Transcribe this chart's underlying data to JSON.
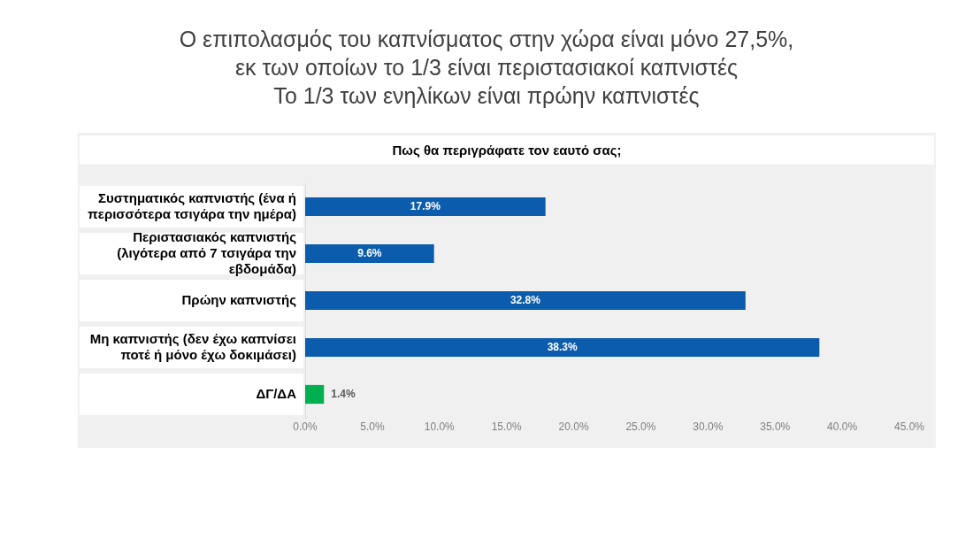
{
  "chart_data": {
    "type": "bar",
    "orientation": "horizontal",
    "title": "Ο επιπολασμός του καπνίσματος στην χώρα είναι μόνο 27,5%,\nεκ των οποίων το 1/3 είναι περιστασιακοί καπνιστές\nΤο 1/3 των ενηλίκων είναι πρώην καπνιστές",
    "subtitle": "Πως θα περιγράφατε τον εαυτό σας;",
    "categories": [
      "Συστηματικός καπνιστής (ένα ή περισσότερα τσιγάρα την ημέρα)",
      "Περιστασιακός καπνιστής (λιγότερα από 7 τσιγάρα την εβδομάδα)",
      "Πρώην καπνιστής",
      "Μη καπνιστής (δεν έχω καπνίσει ποτέ ή μόνο έχω δοκιμάσει)",
      "ΔΓ/ΔΑ"
    ],
    "values": [
      17.9,
      9.6,
      32.8,
      38.3,
      1.4
    ],
    "colors": [
      "#0b5cad",
      "#0b5cad",
      "#0b5cad",
      "#0b5cad",
      "#00b050"
    ],
    "value_labels": [
      "17.9%",
      "9.6%",
      "32.8%",
      "38.3%",
      "1.4%"
    ],
    "xlim": [
      0,
      45
    ],
    "xticks": [
      {
        "value": 0,
        "label": "0.0%"
      },
      {
        "value": 5,
        "label": "5.0%"
      },
      {
        "value": 10,
        "label": "10.0%"
      },
      {
        "value": 15,
        "label": "15.0%"
      },
      {
        "value": 20,
        "label": "20.0%"
      },
      {
        "value": 25,
        "label": "25.0%"
      },
      {
        "value": 30,
        "label": "30.0%"
      },
      {
        "value": 35,
        "label": "35.0%"
      },
      {
        "value": 40,
        "label": "40.0%"
      },
      {
        "value": 45,
        "label": "45.0%"
      }
    ],
    "grid": false,
    "legend": false
  }
}
